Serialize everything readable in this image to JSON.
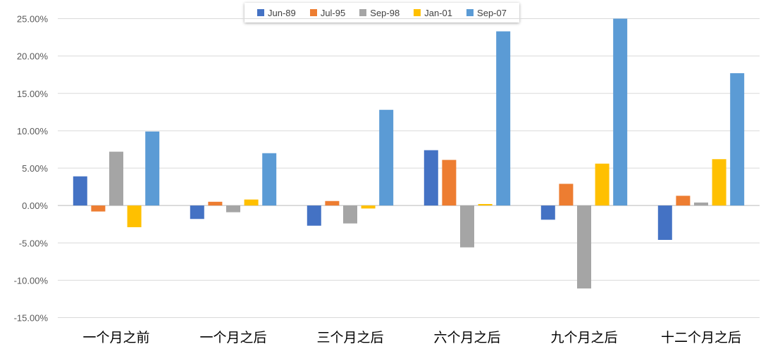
{
  "chart_data": {
    "type": "bar",
    "categories": [
      "一个月之前",
      "一个月之后",
      "三个月之后",
      "六个月之后",
      "九个月之后",
      "十二个月之后"
    ],
    "series": [
      {
        "name": "Jun-89",
        "color": "#4472C4",
        "values": [
          3.9,
          -1.8,
          -2.7,
          7.4,
          -1.9,
          -4.6
        ]
      },
      {
        "name": "Jul-95",
        "color": "#ED7D31",
        "values": [
          -0.8,
          0.5,
          0.6,
          6.1,
          2.9,
          1.3
        ]
      },
      {
        "name": "Sep-98",
        "color": "#A5A5A5",
        "values": [
          7.2,
          -0.9,
          -2.4,
          -5.6,
          -11.1,
          0.4
        ]
      },
      {
        "name": "Jan-01",
        "color": "#FFC000",
        "values": [
          -2.9,
          0.8,
          -0.4,
          0.2,
          5.6,
          6.2
        ]
      },
      {
        "name": "Sep-07",
        "color": "#5B9BD5",
        "values": [
          9.9,
          7.0,
          12.8,
          23.3,
          25.0,
          17.7
        ]
      }
    ],
    "yticks": [
      "25.00%",
      "20.00%",
      "15.00%",
      "10.00%",
      "5.00%",
      "0.00%",
      "-5.00%",
      "-10.00%",
      "-15.00%"
    ],
    "ylim": [
      -15,
      25
    ],
    "ytick_step": 5,
    "grid": true,
    "legend_position": "top"
  }
}
